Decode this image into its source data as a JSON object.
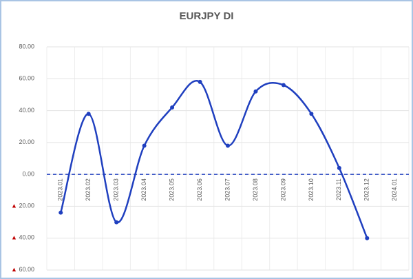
{
  "chart_data": {
    "type": "line",
    "title": "EURJPY DI",
    "categories": [
      "2023.01",
      "2023.02",
      "2023.03",
      "2023.04",
      "2023.05",
      "2023.06",
      "2023.07",
      "2023.08",
      "2023.09",
      "2023.10",
      "2023.11",
      "2023.12",
      "2024.01"
    ],
    "values": [
      -24,
      38,
      -30,
      18,
      42,
      58,
      18,
      52,
      56,
      38,
      4,
      -40,
      null
    ],
    "color": "#1f3fbf",
    "smooth": true,
    "ylim": [
      -60,
      80
    ],
    "yticks": [
      {
        "value": 80,
        "label": "80.00"
      },
      {
        "value": 60,
        "label": "60.00"
      },
      {
        "value": 40,
        "label": "40.00"
      },
      {
        "value": 20,
        "label": "20.00"
      },
      {
        "value": 0,
        "label": "0.00"
      },
      {
        "value": -20,
        "label": "▲ 20.00"
      },
      {
        "value": -40,
        "label": "▲ 40.00"
      },
      {
        "value": -60,
        "label": "▲ 60.00"
      }
    ],
    "grid": true
  }
}
